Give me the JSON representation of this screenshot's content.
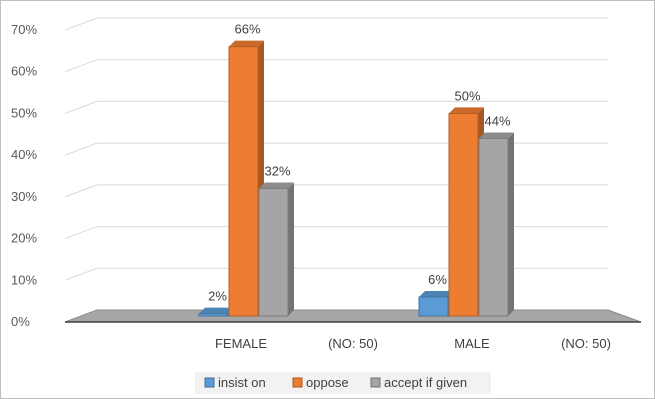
{
  "chart_data": {
    "type": "bar",
    "style": "3d-clustered-column",
    "categories": [
      "FEMALE",
      "(NO: 50)",
      "MALE",
      "(NO: 50)"
    ],
    "series": [
      {
        "name": "insist on",
        "color": "#5b9bd5",
        "values": [
          2,
          null,
          6,
          null
        ]
      },
      {
        "name": "oppose",
        "color": "#ed7d31",
        "values": [
          66,
          null,
          50,
          null
        ]
      },
      {
        "name": "accept if given",
        "color": "#a5a5a5",
        "values": [
          32,
          null,
          44,
          null
        ]
      }
    ],
    "data_labels": [
      "2%",
      "66%",
      "32%",
      "6%",
      "50%",
      "44%"
    ],
    "y_ticks": [
      "0%",
      "10%",
      "20%",
      "30%",
      "40%",
      "50%",
      "60%",
      "70%"
    ],
    "ylim": [
      0,
      70
    ],
    "y_unit": "%",
    "grid": true,
    "legend_position": "bottom",
    "title": "",
    "xlabel": "",
    "ylabel": ""
  }
}
